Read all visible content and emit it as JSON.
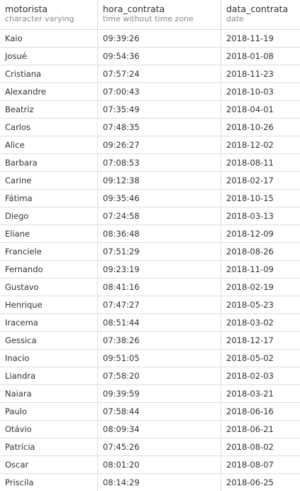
{
  "columns": [
    {
      "name": "motorista",
      "type": "character varying"
    },
    {
      "name": "hora_contrata",
      "type": "time without time zone"
    },
    {
      "name": "data_contrata",
      "type": "date"
    }
  ],
  "rows": [
    [
      "Kaio",
      "09:39:26",
      "2018-11-19"
    ],
    [
      "Josué",
      "09:54:36",
      "2018-01-08"
    ],
    [
      "Cristiana",
      "07:57:24",
      "2018-11-23"
    ],
    [
      "Alexandre",
      "07:00:43",
      "2018-10-03"
    ],
    [
      "Beatriz",
      "07:35:49",
      "2018-04-01"
    ],
    [
      "Carlos",
      "07:48:35",
      "2018-10-26"
    ],
    [
      "Alice",
      "09:26:27",
      "2018-12-02"
    ],
    [
      "Barbara",
      "07:08:53",
      "2018-08-11"
    ],
    [
      "Carine",
      "09:12:38",
      "2018-02-17"
    ],
    [
      "Fátima",
      "09:35:46",
      "2018-10-15"
    ],
    [
      "Diego",
      "07:24:58",
      "2018-03-13"
    ],
    [
      "Eliane",
      "08:36:48",
      "2018-12-09"
    ],
    [
      "Franciele",
      "07:51:29",
      "2018-08-26"
    ],
    [
      "Fernando",
      "09:23:19",
      "2018-11-09"
    ],
    [
      "Gustavo",
      "08:41:16",
      "2018-02-19"
    ],
    [
      "Henrique",
      "07:47:27",
      "2018-05-23"
    ],
    [
      "Iracema",
      "08:51:44",
      "2018-03-02"
    ],
    [
      "Gessica",
      "07:38:26",
      "2018-12-17"
    ],
    [
      "Inacio",
      "09:51:05",
      "2018-05-02"
    ],
    [
      "Liandra",
      "07:58:20",
      "2018-02-03"
    ],
    [
      "Naiara",
      "09:39:59",
      "2018-03-21"
    ],
    [
      "Paulo",
      "07:58:44",
      "2018-06-16"
    ],
    [
      "Otávio",
      "08:09:34",
      "2018-06-21"
    ],
    [
      "Patrícia",
      "07:45:26",
      "2018-08-02"
    ],
    [
      "Oscar",
      "08:01:20",
      "2018-08-07"
    ],
    [
      "Priscila",
      "08:14:29",
      "2018-06-25"
    ]
  ]
}
